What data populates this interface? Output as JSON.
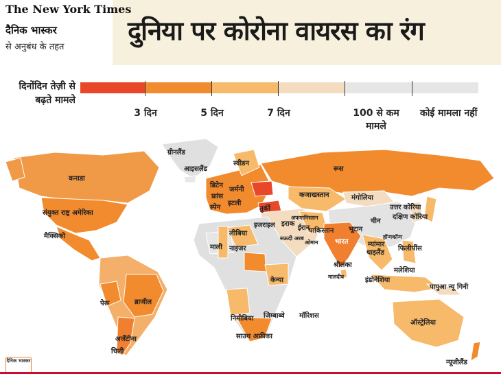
{
  "credit": {
    "nyt": "The New York Times",
    "dainik": "दैनिक भास्कर",
    "agreement": "से अनुबंध के तहत"
  },
  "title": "दुनिया पर कोरोना वायरस का रंग",
  "legend": {
    "title": "दिनोंदिन तेज़ी से बढ़ते मामले",
    "colors": [
      "#e8472a",
      "#f28a2e",
      "#f7b96a",
      "#f3dcc0",
      "#e6e6e6"
    ],
    "ticks": [
      "3 दिन",
      "5 दिन",
      "7 दिन",
      "100 से कम मामले",
      "कोई मामला नहीं"
    ]
  },
  "labels": [
    "ग्रीनलैंड",
    "आइसलैंड",
    "स्वीडन",
    "रूस",
    "कनाडा",
    "ब्रिटेन",
    "जर्मनी",
    "फ्रांस",
    "इटली",
    "स्पेन",
    "कजाखस्तान",
    "मंगोलिया",
    "संयुक्त राष्ट्र अमेरिका",
    "तुर्की",
    "उत्तर कोरिया",
    "चीन",
    "दक्षिण कोरिया",
    "इजराइल",
    "इराक",
    "ईरान",
    "अफगानिस्तान",
    "पाकिस्तान",
    "भूटान",
    "मैक्सिको",
    "लीबिया",
    "सऊदी अरब",
    "हॉन्गकॉन्ग",
    "माली",
    "नाइजर",
    "ओमान",
    "भारत",
    "म्यांमार",
    "थाइलैंड",
    "फिलीपींस",
    "श्रीलंका",
    "मालदीव",
    "मलेशिया",
    "इंडोनेशिया",
    "केन्या",
    "पापुआ न्यू गिनी",
    "पेरू",
    "ब्राजील",
    "जिम्बाब्वे",
    "निमीबिया",
    "मॉरिशस",
    "ऑस्ट्रेलिया",
    "साउथ अफ्रीका",
    "अर्जेंटीना",
    "चिली",
    "न्यूजीलैंड"
  ],
  "logo": "दैनिक भास्कर"
}
